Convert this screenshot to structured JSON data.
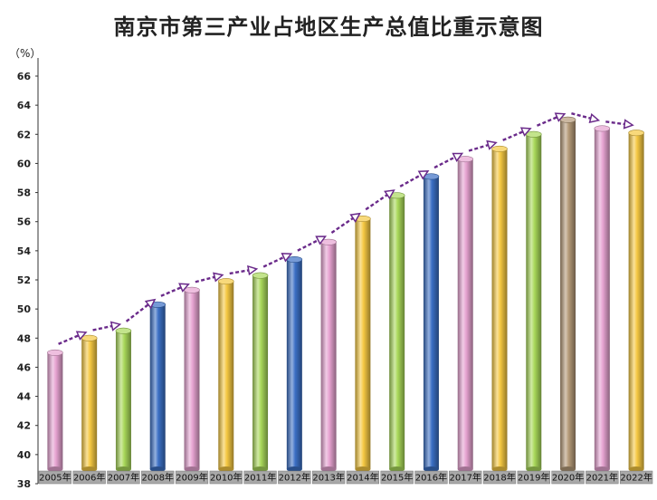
{
  "chart_data": {
    "type": "bar",
    "title": "南京市第三产业占地区生产总值比重示意图",
    "unit_label": "（%）",
    "categories": [
      "2005年",
      "2006年",
      "2007年",
      "2008年",
      "2009年",
      "2010年",
      "2011年",
      "2012年",
      "2013年",
      "2014年",
      "2015年",
      "2016年",
      "2017年",
      "2018年",
      "2019年",
      "2020年",
      "2021年",
      "2022年"
    ],
    "values": [
      47.0,
      48.0,
      48.5,
      50.3,
      51.3,
      51.9,
      52.3,
      53.4,
      54.6,
      56.2,
      57.8,
      59.1,
      60.3,
      61.0,
      62.0,
      63.0,
      62.4,
      62.1
    ],
    "yticks": [
      38,
      40,
      42,
      44,
      46,
      48,
      50,
      52,
      54,
      56,
      58,
      60,
      62,
      64,
      66
    ],
    "ylim": [
      38,
      66
    ],
    "grid": false,
    "trend_arrow": true,
    "bar_colors": [
      "#e6a3d1",
      "#f5c842",
      "#a9d85a",
      "#3b6fc4",
      "#e6a3d1",
      "#f5c842",
      "#a9d85a",
      "#3b6fc4",
      "#e6a3d1",
      "#f5c842",
      "#a9d85a",
      "#3b6fc4",
      "#e6a3d1",
      "#f5c842",
      "#a9d85a",
      "#b49a78",
      "#e6a3d1",
      "#f5c842"
    ]
  }
}
